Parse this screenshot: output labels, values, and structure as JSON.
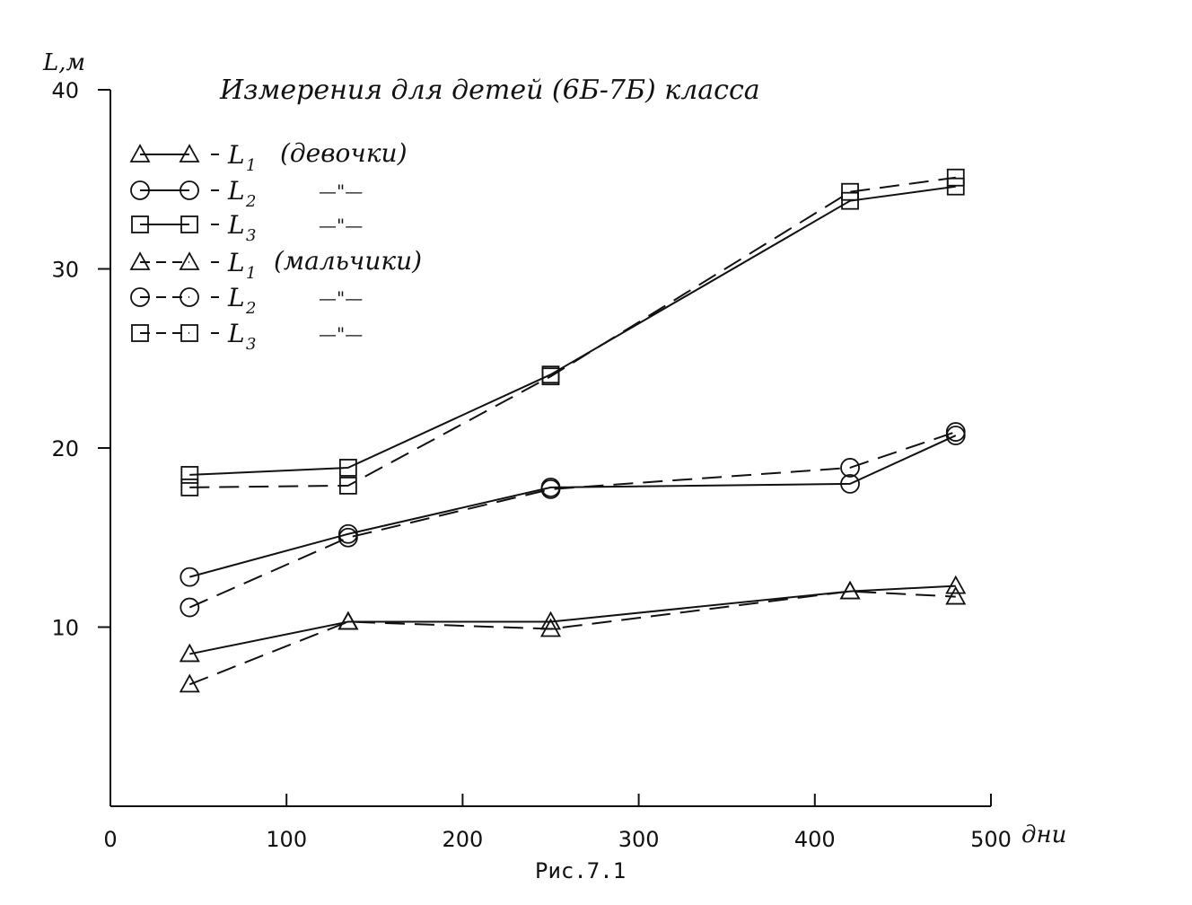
{
  "chart_data": {
    "type": "line",
    "title": "Измерения для детей (6Б-7Б) класса",
    "ylabel": "L,м",
    "xlabel": "дни",
    "caption": "Рис.7.1",
    "xlim": [
      0,
      500
    ],
    "ylim": [
      0,
      40
    ],
    "xticks": [
      "0",
      "100",
      "200",
      "300",
      "400",
      "500"
    ],
    "yticks": [
      "10",
      "20",
      "30",
      "40"
    ],
    "grid": false,
    "legend_position": "top-left",
    "x": [
      45,
      135,
      250,
      420,
      480
    ],
    "series": [
      {
        "name": "L1 (девочки)",
        "marker": "triangle",
        "dash": "solid",
        "values": [
          8.5,
          10.3,
          10.3,
          12.0,
          12.3
        ]
      },
      {
        "name": "L2 (девочки)",
        "marker": "circle",
        "dash": "solid",
        "values": [
          12.8,
          15.2,
          17.8,
          18.0,
          20.7
        ]
      },
      {
        "name": "L3 (девочки)",
        "marker": "square",
        "dash": "solid",
        "values": [
          18.5,
          18.9,
          24.1,
          33.8,
          34.6
        ]
      },
      {
        "name": "L1 (мальчики)",
        "marker": "triangle",
        "dash": "dashed",
        "values": [
          6.8,
          10.3,
          9.9,
          12.0,
          11.7
        ]
      },
      {
        "name": "L2 (мальчики)",
        "marker": "circle",
        "dash": "dashed",
        "values": [
          11.1,
          15.0,
          17.7,
          18.9,
          20.9
        ]
      },
      {
        "name": "L3 (мальчики)",
        "marker": "square",
        "dash": "dashed",
        "values": [
          17.8,
          17.9,
          24.0,
          34.3,
          35.1
        ]
      }
    ]
  },
  "legend": {
    "entries": [
      {
        "marker": "triangle",
        "dash": "solid",
        "letter": "L",
        "sub": "1",
        "note": "(девочки)"
      },
      {
        "marker": "circle",
        "dash": "solid",
        "letter": "L",
        "sub": "2",
        "note": "—\"—"
      },
      {
        "marker": "square",
        "dash": "solid",
        "letter": "L",
        "sub": "3",
        "note": "—\"—"
      },
      {
        "marker": "triangle",
        "dash": "dashed",
        "letter": "L",
        "sub": "1",
        "note": "(мальчики)"
      },
      {
        "marker": "circle",
        "dash": "dashed",
        "letter": "L",
        "sub": "2",
        "note": "—\"—"
      },
      {
        "marker": "square",
        "dash": "dashed",
        "letter": "L",
        "sub": "3",
        "note": "—\"—"
      }
    ]
  },
  "colors": {
    "ink": "#111111",
    "background": "#ffffff"
  }
}
